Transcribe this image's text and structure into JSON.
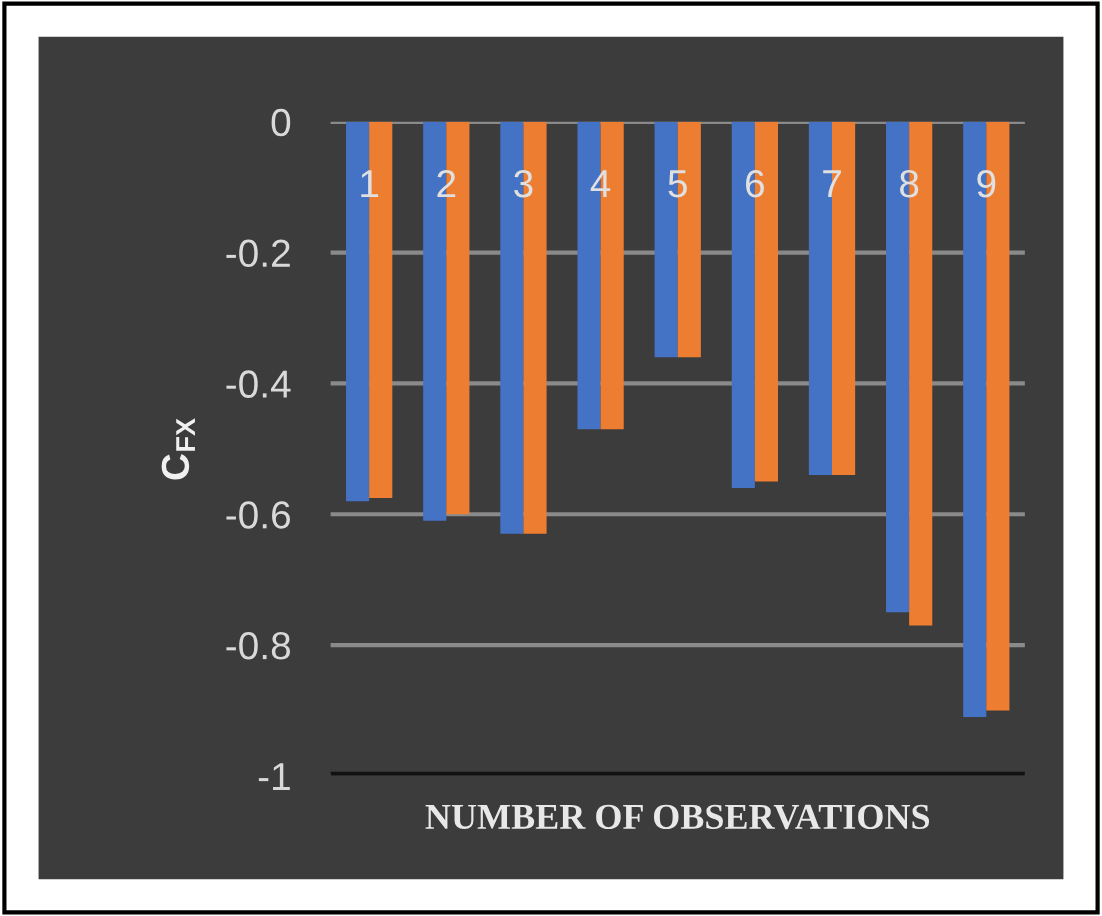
{
  "chart_data": {
    "type": "bar",
    "xlabel": "NUMBER OF OBSERVATIONS",
    "ylabel": "C$_{FX}$",
    "categories": [
      "1",
      "2",
      "3",
      "4",
      "5",
      "6",
      "7",
      "8",
      "9"
    ],
    "series": [
      {
        "color": "#4472c4",
        "values": [
          -0.58,
          -0.61,
          -0.63,
          -0.47,
          -0.36,
          -0.56,
          -0.54,
          -0.75,
          -0.91
        ]
      },
      {
        "color": "#ed7d31",
        "values": [
          -0.575,
          -0.6,
          -0.63,
          -0.47,
          -0.36,
          -0.55,
          -0.54,
          -0.77,
          -0.9
        ]
      }
    ],
    "ylim": [
      -1,
      0
    ],
    "yticks": [
      -1,
      -0.8,
      -0.6,
      -0.4,
      -0.2,
      0
    ],
    "grid": "y",
    "legend": false
  }
}
